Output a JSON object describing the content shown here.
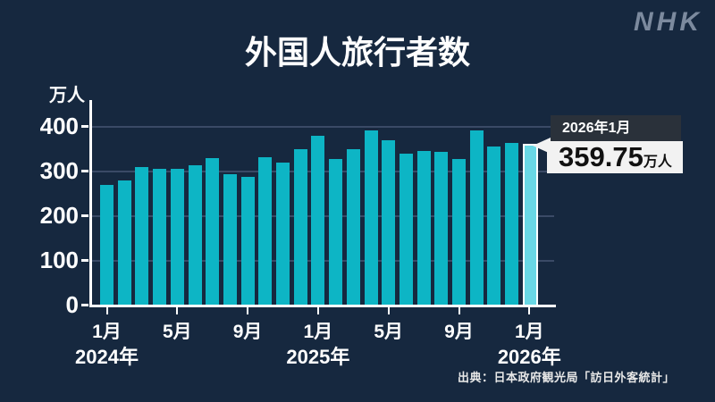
{
  "header": {
    "logo": "NHK",
    "title": "外国人旅行者数"
  },
  "y_axis": {
    "unit": "万人"
  },
  "chart_data": {
    "type": "bar",
    "title": "外国人旅行者数",
    "ylabel": "万人",
    "ylim": [
      0,
      400
    ],
    "y_ticks": [
      0,
      100,
      200,
      300,
      400
    ],
    "grid": true,
    "categories": [
      "2024年1月",
      "2024年2月",
      "2024年3月",
      "2024年4月",
      "2024年5月",
      "2024年6月",
      "2024年7月",
      "2024年8月",
      "2024年9月",
      "2024年10月",
      "2024年11月",
      "2024年12月",
      "2025年1月",
      "2025年2月",
      "2025年3月",
      "2025年4月",
      "2025年5月",
      "2025年6月",
      "2025年7月",
      "2025年8月",
      "2025年9月",
      "2025年10月",
      "2025年11月",
      "2025年12月",
      "2026年1月"
    ],
    "values": [
      269,
      279,
      308,
      304,
      304,
      313,
      329,
      293,
      287,
      331,
      319,
      349,
      378,
      326,
      349,
      391,
      369,
      338,
      344,
      343,
      327,
      390,
      354,
      362,
      359.75
    ],
    "highlight_index": 24,
    "x_tick_labels": [
      {
        "index": 0,
        "month": "1月",
        "year": "2024年"
      },
      {
        "index": 4,
        "month": "5月"
      },
      {
        "index": 8,
        "month": "9月"
      },
      {
        "index": 12,
        "month": "1月",
        "year": "2025年"
      },
      {
        "index": 16,
        "month": "5月"
      },
      {
        "index": 20,
        "month": "9月"
      },
      {
        "index": 24,
        "month": "1月",
        "year": "2026年"
      }
    ]
  },
  "callout": {
    "date_label": "2026年1月",
    "value": "359.75",
    "unit": "万人"
  },
  "source": "出典：日本政府観光局「訪日外客統計」",
  "colors": {
    "background": "#16283F",
    "bar": "#0DB5C5",
    "bar_highlight": "#69D8E5",
    "bar_highlight_border": "#FFFFFF",
    "grid": "#3A4A66",
    "axis": "#FFFFFF",
    "text": "#FFFFFF",
    "logo": "#7C8A9E",
    "callout_label_bg": "#2A313A",
    "callout_label_text": "#FFFFFF",
    "callout_value_bg": "#F2F2F2",
    "callout_value_text": "#111111"
  }
}
